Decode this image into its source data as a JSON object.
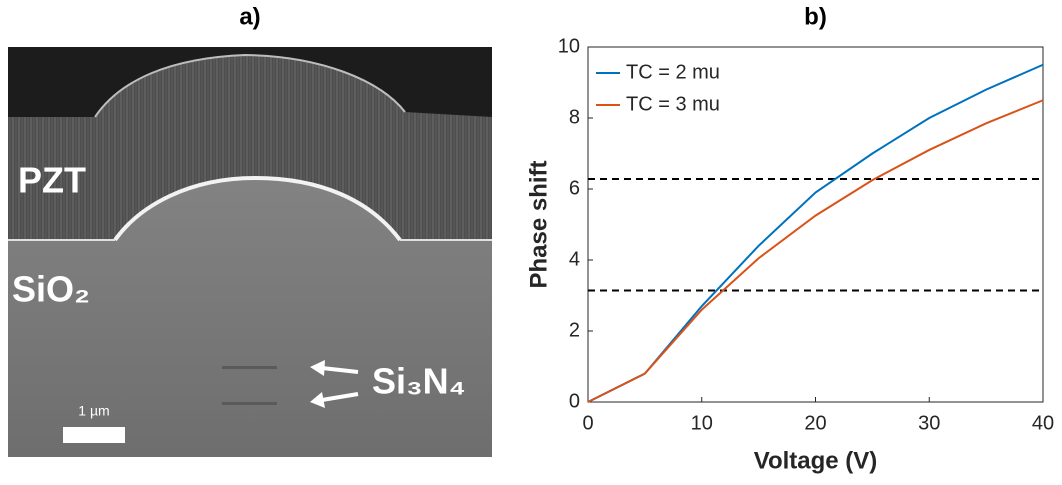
{
  "panel_a": {
    "title": "a)",
    "labels": [
      "PZT",
      "SiO₂",
      "Si₃N₄"
    ],
    "scale_bar": "1 µm"
  },
  "chart_data": {
    "type": "line",
    "title": "b)",
    "x_label": "Voltage (V)",
    "y_label": "Phase shift",
    "x": [
      0,
      5,
      10,
      15,
      20,
      25,
      30,
      35,
      40
    ],
    "series": [
      {
        "name": "TC = 2 mu",
        "color": "#0072bd",
        "values": [
          0,
          0.8,
          2.7,
          4.4,
          5.9,
          7.0,
          8.0,
          8.8,
          9.5
        ]
      },
      {
        "name": "TC = 3 mu",
        "color": "#d95319",
        "values": [
          0,
          0.8,
          2.6,
          4.05,
          5.25,
          6.25,
          7.1,
          7.85,
          8.5
        ]
      }
    ],
    "reference_lines": [
      3.14,
      6.28
    ],
    "xlim": [
      0,
      40
    ],
    "xticks": [
      0,
      10,
      20,
      30,
      40
    ],
    "ylim": [
      0,
      10
    ],
    "yticks": [
      0,
      2,
      4,
      6,
      8,
      10
    ],
    "legend": "upper left"
  }
}
